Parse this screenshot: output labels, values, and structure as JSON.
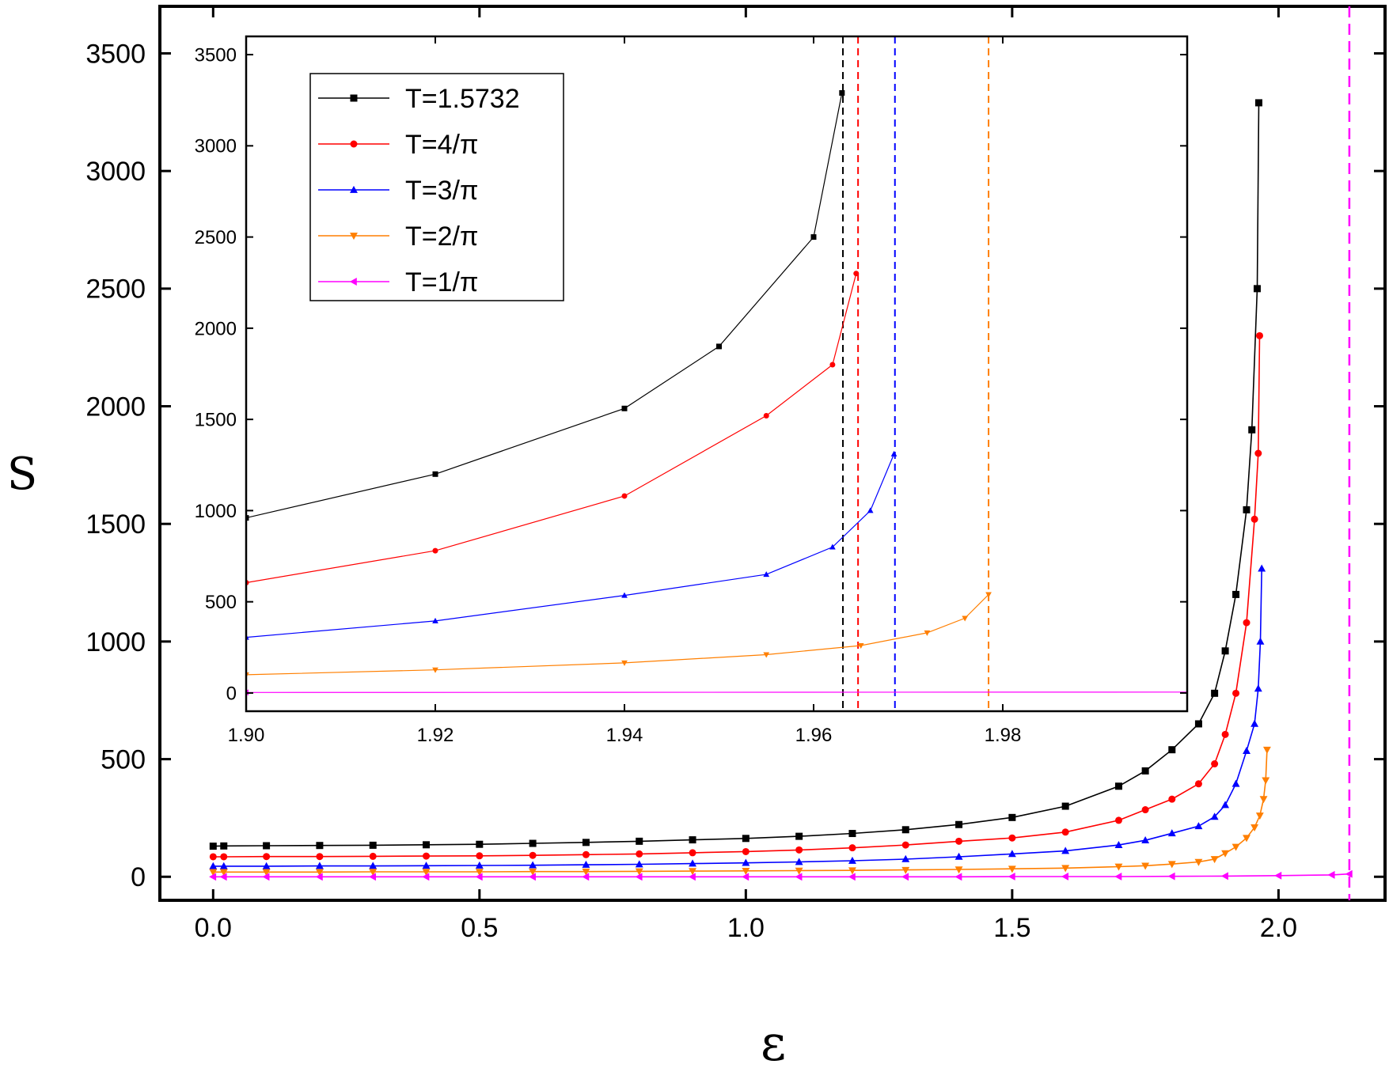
{
  "chart_data": {
    "type": "line",
    "xlabel": "ε",
    "ylabel": "S",
    "main": {
      "xlim": [
        -0.1,
        2.2
      ],
      "ylim": [
        -100,
        3700
      ],
      "xticks": [
        "0.0",
        "0.5",
        "1.0",
        "1.5",
        "2.0"
      ],
      "xtick_values": [
        0,
        0.5,
        1.0,
        1.5,
        2.0
      ],
      "yticks": [
        "0",
        "500",
        "1000",
        "1500",
        "2000",
        "2500",
        "3000",
        "3500"
      ],
      "ytick_values": [
        0,
        500,
        1000,
        1500,
        2000,
        2500,
        3000,
        3500
      ],
      "vlines": [
        {
          "x": 2.133,
          "color": "#ff00ff"
        }
      ]
    },
    "inset": {
      "xlim": [
        1.9,
        1.9995
      ],
      "ylim": [
        -100,
        3600
      ],
      "xticks": [
        "1.90",
        "1.92",
        "1.94",
        "1.96",
        "1.98"
      ],
      "xtick_values": [
        1.9,
        1.92,
        1.94,
        1.96,
        1.98
      ],
      "yticks": [
        "0",
        "500",
        "1000",
        "1500",
        "2000",
        "2500",
        "3000",
        "3500"
      ],
      "ytick_values": [
        0,
        500,
        1000,
        1500,
        2000,
        2500,
        3000,
        3500
      ],
      "vlines": [
        {
          "x": 1.9631,
          "color": "#000000"
        },
        {
          "x": 1.9647,
          "color": "#ff0000"
        },
        {
          "x": 1.9686,
          "color": "#0000ff"
        },
        {
          "x": 1.9785,
          "color": "#ff7f00"
        }
      ]
    },
    "legend_position": "top-left of inset",
    "series": [
      {
        "name": "T=1.5732",
        "color": "#000000",
        "marker": "square",
        "x": [
          0,
          0.02,
          0.1,
          0.2,
          0.3,
          0.4,
          0.5,
          0.6,
          0.7,
          0.8,
          0.9,
          1.0,
          1.1,
          1.2,
          1.3,
          1.4,
          1.5,
          1.6,
          1.7,
          1.75,
          1.8,
          1.85,
          1.88,
          1.9,
          1.92,
          1.94,
          1.95,
          1.96,
          1.963
        ],
        "y": [
          130,
          131,
          132,
          133,
          134,
          136,
          138,
          142,
          146,
          151,
          157,
          163,
          172,
          184,
          200,
          222,
          252,
          300,
          385,
          450,
          540,
          650,
          780,
          960,
          1200,
          1560,
          1900,
          2500,
          3290
        ]
      },
      {
        "name": "T=4/π",
        "color": "#ff0000",
        "marker": "circle",
        "x": [
          0,
          0.02,
          0.1,
          0.2,
          0.3,
          0.4,
          0.5,
          0.6,
          0.7,
          0.8,
          0.9,
          1.0,
          1.1,
          1.2,
          1.3,
          1.4,
          1.5,
          1.6,
          1.7,
          1.75,
          1.8,
          1.85,
          1.88,
          1.9,
          1.92,
          1.94,
          1.955,
          1.962,
          1.9645
        ],
        "y": [
          85,
          85,
          86,
          86,
          87,
          88,
          89,
          91,
          94,
          97,
          102,
          107,
          114,
          123,
          135,
          151,
          165,
          190,
          240,
          285,
          330,
          395,
          480,
          605,
          780,
          1080,
          1520,
          1800,
          2300
        ]
      },
      {
        "name": "T=3/π",
        "color": "#0000ff",
        "marker": "triangle-up",
        "x": [
          0,
          0.02,
          0.1,
          0.2,
          0.3,
          0.4,
          0.5,
          0.6,
          0.7,
          0.8,
          0.9,
          1.0,
          1.1,
          1.2,
          1.3,
          1.4,
          1.5,
          1.6,
          1.7,
          1.75,
          1.8,
          1.85,
          1.88,
          1.9,
          1.92,
          1.94,
          1.955,
          1.962,
          1.966,
          1.9685
        ],
        "y": [
          45,
          45,
          45,
          46,
          46,
          47,
          48,
          49,
          51,
          53,
          56,
          59,
          63,
          68,
          75,
          85,
          97,
          110,
          135,
          155,
          185,
          215,
          255,
          305,
          395,
          535,
          650,
          800,
          1000,
          1310
        ]
      },
      {
        "name": "T=2/π",
        "color": "#ff7f00",
        "marker": "triangle-down",
        "x": [
          0,
          0.02,
          0.1,
          0.2,
          0.3,
          0.4,
          0.5,
          0.6,
          0.7,
          0.8,
          0.9,
          1.0,
          1.1,
          1.2,
          1.3,
          1.4,
          1.5,
          1.6,
          1.7,
          1.75,
          1.8,
          1.85,
          1.88,
          1.9,
          1.92,
          1.94,
          1.955,
          1.965,
          1.972,
          1.976,
          1.9785
        ],
        "y": [
          20,
          20,
          20,
          20,
          21,
          21,
          21,
          22,
          22,
          23,
          24,
          25,
          26,
          27,
          29,
          31,
          34,
          37,
          43,
          47,
          54,
          63,
          75,
          100,
          127,
          165,
          210,
          260,
          330,
          410,
          540
        ]
      },
      {
        "name": "T=1/π",
        "color": "#ff00ff",
        "marker": "triangle-left",
        "x": [
          0,
          0.02,
          0.1,
          0.2,
          0.3,
          0.4,
          0.5,
          0.6,
          0.7,
          0.8,
          0.9,
          1.0,
          1.1,
          1.2,
          1.3,
          1.4,
          1.5,
          1.6,
          1.7,
          1.8,
          1.9,
          2.0,
          2.1,
          2.133
        ],
        "y": [
          0,
          0,
          0,
          0,
          0,
          0,
          0,
          0,
          0,
          0,
          0,
          0,
          0,
          0,
          0,
          0,
          1,
          1,
          1,
          2,
          3,
          5,
          8,
          12
        ]
      }
    ]
  }
}
